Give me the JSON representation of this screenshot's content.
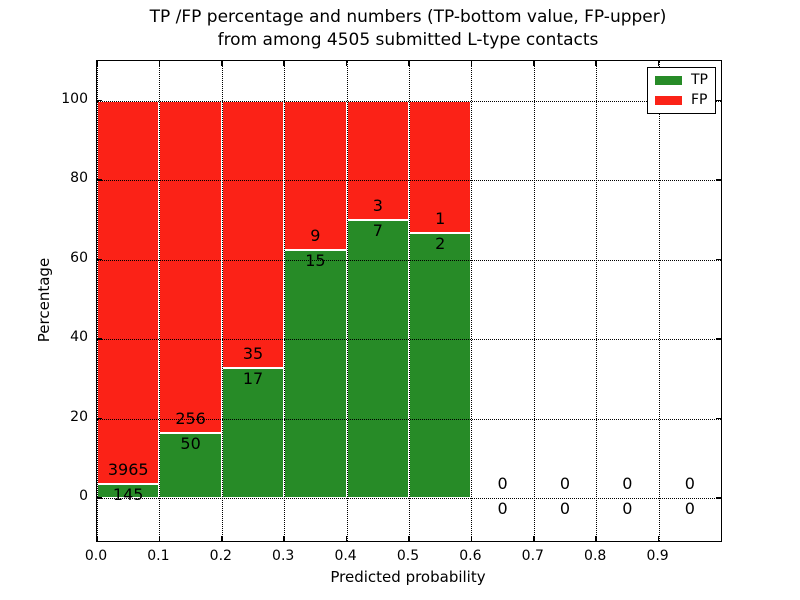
{
  "figure": {
    "title_line1": "TP /FP percentage and numbers (TP-bottom value, FP-upper)",
    "title_line2": "from among 4505 submitted L-type contacts"
  },
  "colors": {
    "tp_green": "#278b27",
    "fp_red": "#fb2217",
    "grid": "#000000",
    "text": "#000000",
    "background": "#ffffff"
  },
  "chart_data": {
    "type": "bar",
    "stacked": true,
    "normalized_to_percent": true,
    "title": "TP /FP percentage and numbers (TP-bottom value, FP-upper)\nfrom among 4505 submitted L-type contacts",
    "xlabel": "Predicted probability",
    "ylabel": "Percentage",
    "xlim": [
      0.0,
      1.0
    ],
    "ylim": [
      -10.8,
      110
    ],
    "x_ticks": [
      "0.0",
      "0.1",
      "0.2",
      "0.3",
      "0.4",
      "0.5",
      "0.6",
      "0.7",
      "0.8",
      "0.9"
    ],
    "x_tick_values": [
      0.0,
      0.1,
      0.2,
      0.3,
      0.4,
      0.5,
      0.6,
      0.7,
      0.8,
      0.9
    ],
    "y_ticks": [
      "0",
      "20",
      "40",
      "60",
      "80",
      "100"
    ],
    "y_tick_values": [
      0,
      20,
      40,
      60,
      80,
      100
    ],
    "grid": "dotted, both axes, drawn over bars",
    "legend": {
      "position": "upper right",
      "entries": [
        {
          "label": "TP",
          "color": "#278b27"
        },
        {
          "label": "FP",
          "color": "#fb2217"
        }
      ]
    },
    "bins": [
      {
        "range": [
          0.0,
          0.1
        ],
        "tp": 145,
        "fp": 3965,
        "tp_pct": 3.5
      },
      {
        "range": [
          0.1,
          0.2
        ],
        "tp": 50,
        "fp": 256,
        "tp_pct": 16.3
      },
      {
        "range": [
          0.2,
          0.3
        ],
        "tp": 17,
        "fp": 35,
        "tp_pct": 32.7
      },
      {
        "range": [
          0.3,
          0.4
        ],
        "tp": 15,
        "fp": 9,
        "tp_pct": 62.5
      },
      {
        "range": [
          0.4,
          0.5
        ],
        "tp": 7,
        "fp": 3,
        "tp_pct": 70.0
      },
      {
        "range": [
          0.5,
          0.6
        ],
        "tp": 2,
        "fp": 1,
        "tp_pct": 66.7
      },
      {
        "range": [
          0.6,
          0.7
        ],
        "tp": 0,
        "fp": 0,
        "tp_pct": null
      },
      {
        "range": [
          0.7,
          0.8
        ],
        "tp": 0,
        "fp": 0,
        "tp_pct": null
      },
      {
        "range": [
          0.8,
          0.9
        ],
        "tp": 0,
        "fp": 0,
        "tp_pct": null
      },
      {
        "range": [
          0.9,
          1.0
        ],
        "tp": 0,
        "fp": 0,
        "tp_pct": null
      }
    ],
    "annotation_note": "FP count printed above TP/FP boundary, TP count printed below it"
  }
}
